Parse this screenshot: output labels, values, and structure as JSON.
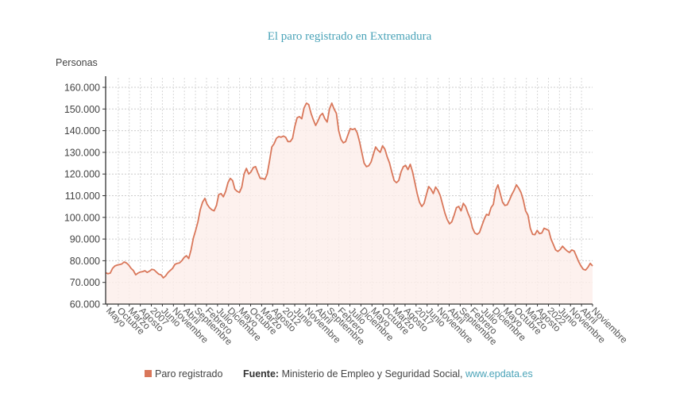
{
  "chart_data": {
    "type": "area",
    "title": "El paro registrado en Extremadura",
    "ylabel": "Personas",
    "xlabel": "",
    "ylim": [
      60000,
      160000
    ],
    "y_ticks": [
      160000,
      150000,
      140000,
      130000,
      120000,
      110000,
      100000,
      90000,
      80000,
      70000,
      60000
    ],
    "y_tick_labels": [
      "160.000",
      "150.000",
      "140.000",
      "130.000",
      "120.000",
      "110.000",
      "100.000",
      "90.000",
      "80.000",
      "70.000",
      "60.000"
    ],
    "grid": true,
    "x_tick_labels": [
      "Mayo",
      "Octubre",
      "Marzo",
      "Agosto",
      "2007",
      "Junio",
      "Noviembre",
      "Abril",
      "Septiembre",
      "Febrero",
      "Julio",
      "Diciembre",
      "Mayo",
      "Octubre",
      "Marzo",
      "Agosto",
      "2012",
      "Junio",
      "Noviembre",
      "Abril",
      "Septiembre",
      "Febrero",
      "Julio",
      "Diciembre",
      "Mayo",
      "Octubre",
      "Marzo",
      "Agosto",
      "2017",
      "Junio",
      "Noviembre",
      "Abril",
      "Septiembre",
      "Febrero",
      "Julio",
      "Diciembre",
      "Mayo",
      "Octubre",
      "Marzo",
      "Agosto",
      "2022",
      "Junio",
      "Noviembre",
      "Abril",
      "Noviembre"
    ],
    "series": [
      {
        "name": "Paro registrado",
        "color": "#d9775a",
        "values": [
          74500,
          74000,
          74300,
          76500,
          77600,
          78000,
          78200,
          78500,
          79400,
          79000,
          78000,
          76500,
          75500,
          73500,
          74300,
          74800,
          75000,
          75400,
          74600,
          75200,
          76000,
          75800,
          74800,
          73800,
          73500,
          72100,
          73000,
          74500,
          75500,
          76500,
          78300,
          78800,
          79000,
          80000,
          81500,
          82300,
          81000,
          85000,
          90400,
          94000,
          98000,
          103500,
          107000,
          108800,
          106000,
          104500,
          103500,
          103000,
          105500,
          110500,
          111000,
          109500,
          112000,
          116000,
          118000,
          117000,
          113000,
          112000,
          111500,
          114000,
          120000,
          122600,
          120000,
          121000,
          123000,
          123400,
          120500,
          118000,
          118000,
          117500,
          120000,
          126000,
          132500,
          134000,
          136500,
          137300,
          137000,
          137500,
          137000,
          135000,
          135000,
          136500,
          142000,
          146000,
          146500,
          145500,
          150500,
          152700,
          152000,
          148000,
          145000,
          142400,
          144500,
          147000,
          148000,
          145500,
          144000,
          150000,
          152700,
          150000,
          148000,
          140000,
          136000,
          134400,
          135000,
          138000,
          141000,
          140500,
          141000,
          139000,
          135000,
          130000,
          125000,
          123400,
          123800,
          125500,
          129000,
          132500,
          131000,
          130000,
          133000,
          131500,
          128000,
          125200,
          121000,
          117000,
          116000,
          117000,
          121000,
          123400,
          124000,
          122000,
          124500,
          121000,
          116000,
          111000,
          107000,
          105000,
          106500,
          110500,
          114200,
          113000,
          111000,
          114000,
          112400,
          110000,
          106000,
          102000,
          99000,
          97000,
          98000,
          101000,
          104500,
          105000,
          103000,
          106500,
          105000,
          102000,
          99500,
          95000,
          92800,
          92200,
          93000,
          96000,
          99000,
          101400,
          101000,
          104500,
          106000,
          112500,
          115000,
          111000,
          107000,
          105500,
          105800,
          108000,
          110500,
          112500,
          115000,
          113500,
          111500,
          108000,
          103000,
          101000,
          95000,
          92200,
          92000,
          94000,
          92500,
          92800,
          95000,
          94500,
          94000,
          90000,
          87500,
          85000,
          84300,
          85200,
          86700,
          85500,
          84500,
          83800,
          85000,
          84500,
          82000,
          79500,
          77500,
          76000,
          75700,
          77000,
          78800,
          77600
        ]
      }
    ],
    "legend": "bottom",
    "x_start": "Mayo 2005",
    "x_end": "Noviembre 2023"
  },
  "footer": {
    "legend_label": "Paro registrado",
    "source_label": "Fuente:",
    "source_text": " Ministerio de Empleo y Seguridad Social, ",
    "source_link": "www.epdata.es"
  }
}
